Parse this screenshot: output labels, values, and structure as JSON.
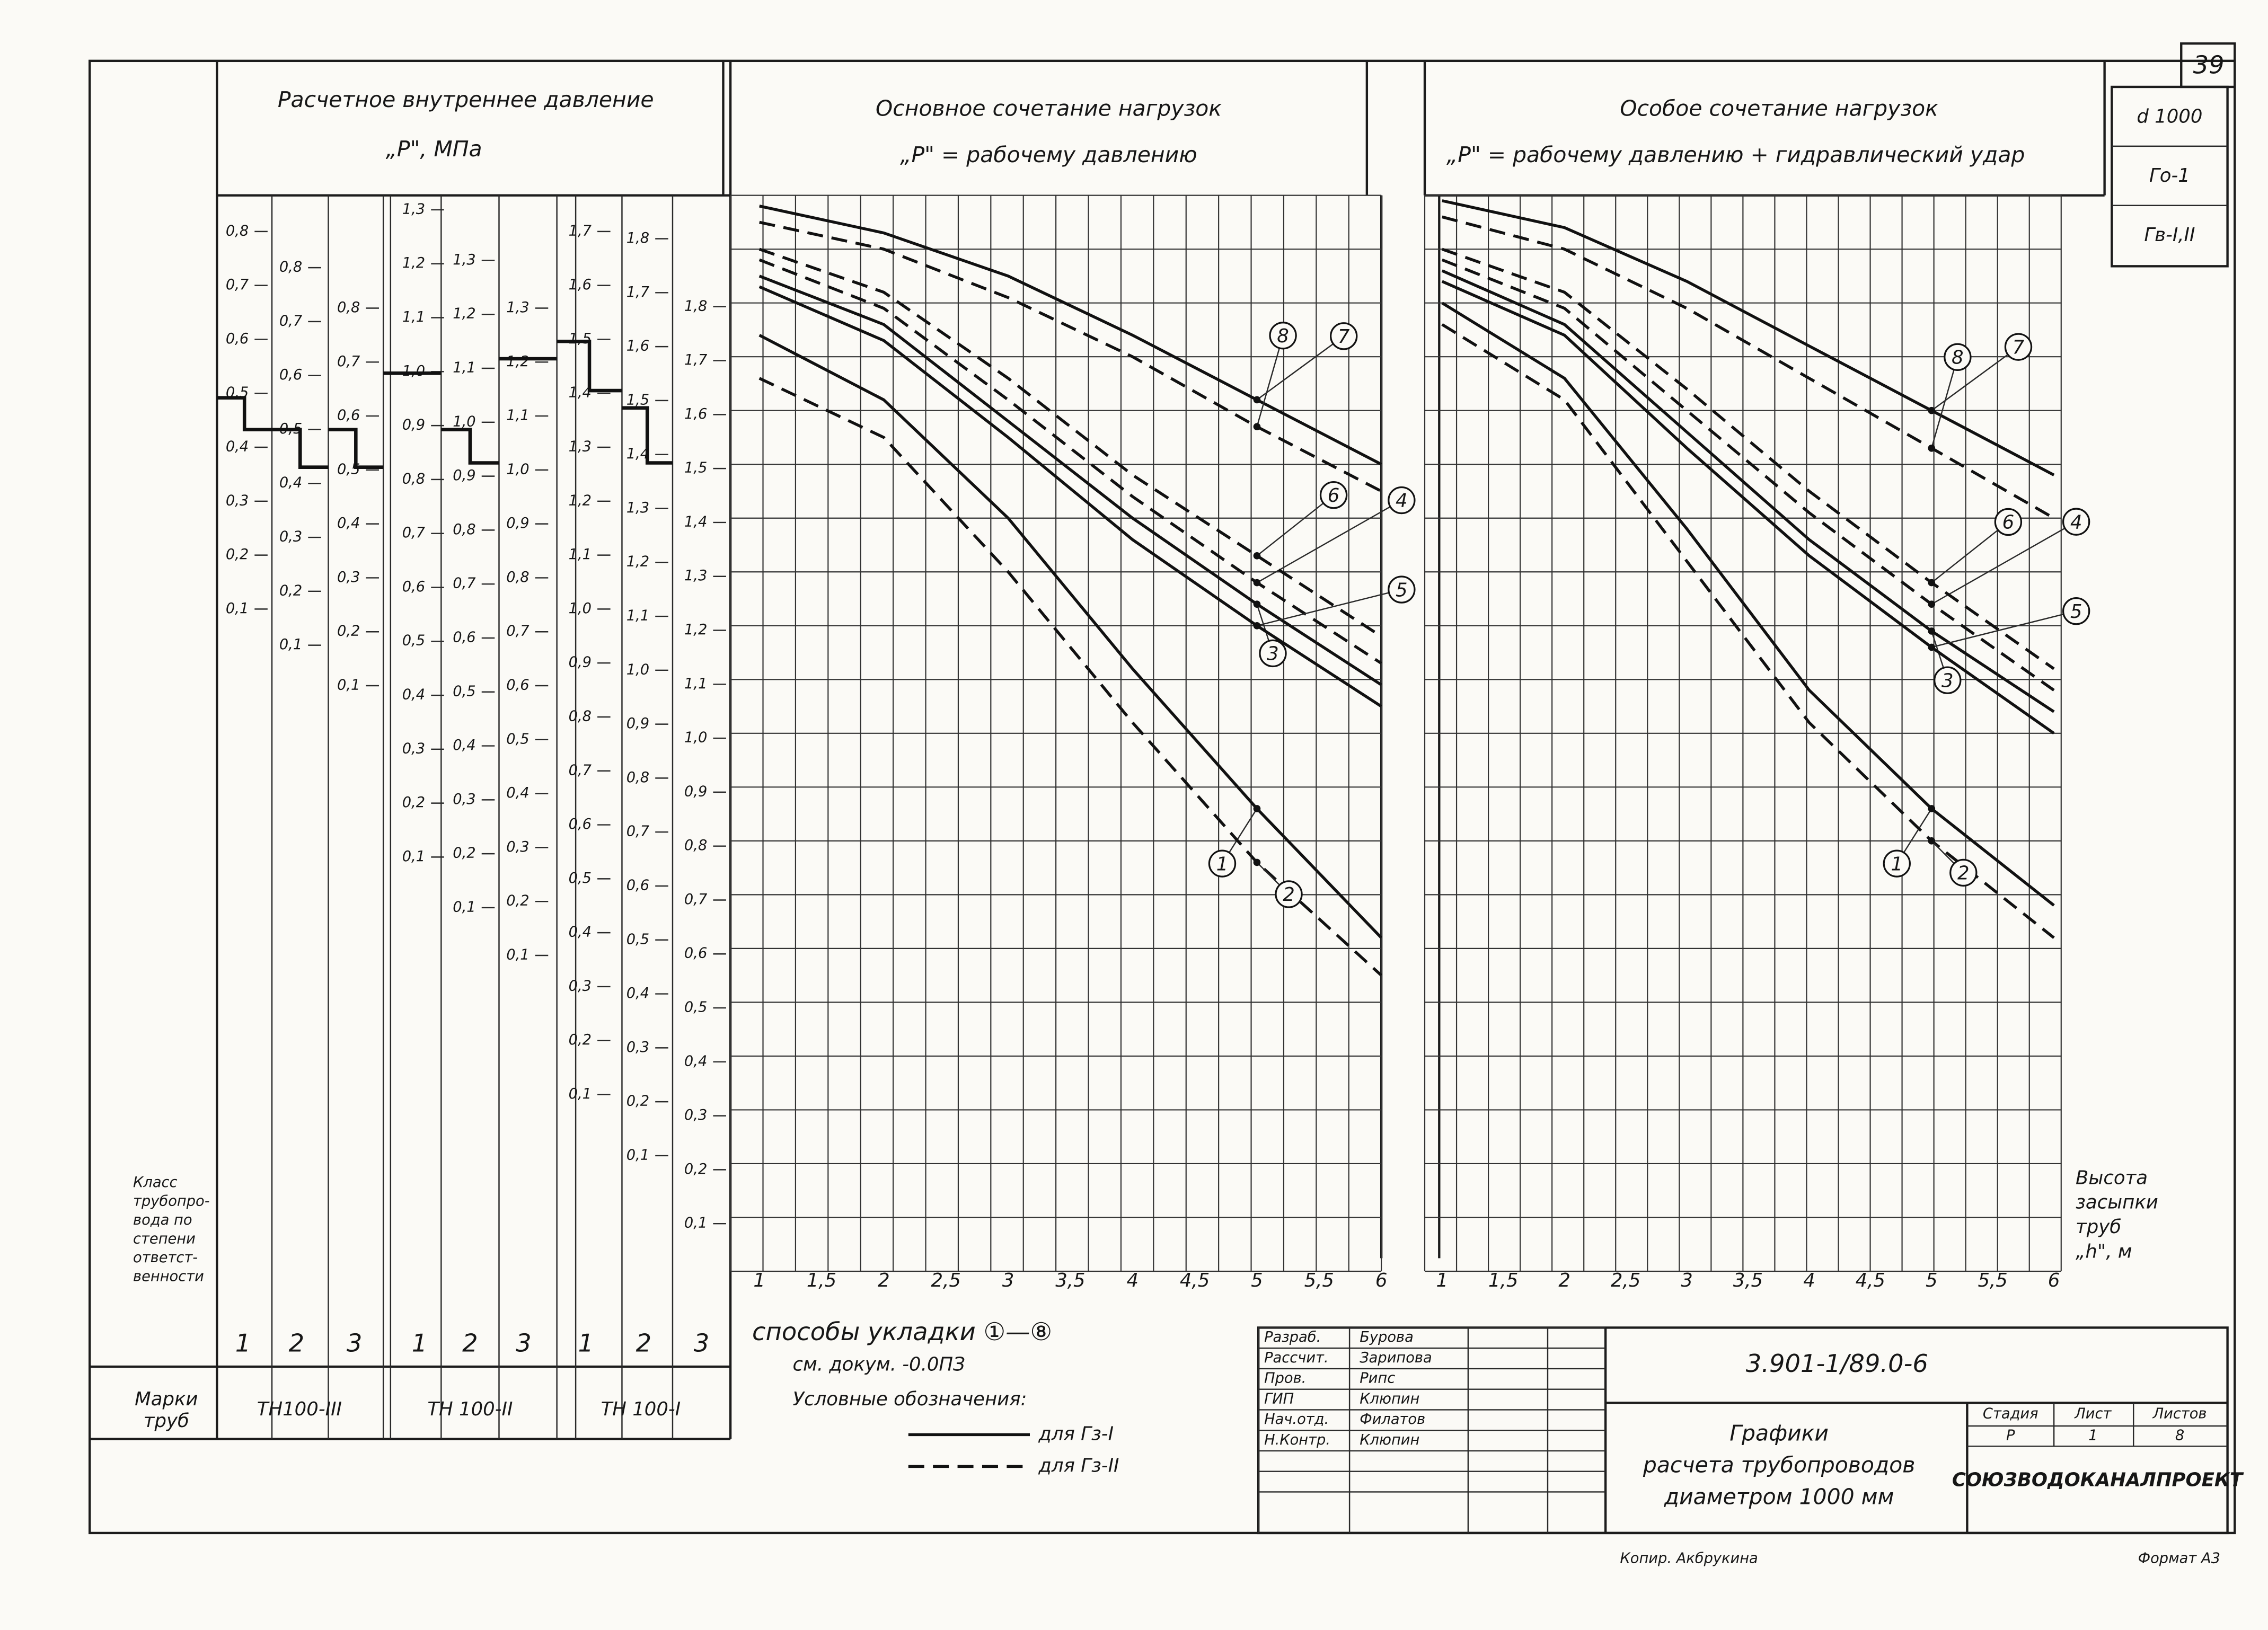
{
  "sheet_number": "39",
  "stamp": [
    "d 1000",
    "Го-1",
    "Гв-I,II"
  ],
  "pressure_scale": {
    "title": "Расчетное внутреннее давление",
    "unit": "„Р\", МПа",
    "columns": [
      [
        "0,8",
        "0,7",
        "0,6",
        "0,5",
        "0,4",
        "0,3",
        "0,2",
        "0,1"
      ],
      [
        "0,8",
        "0,7",
        "0,6",
        "0,5",
        "0,4",
        "0,3",
        "0,2",
        "0,1"
      ],
      [
        "0,8",
        "0,7",
        "0,6",
        "0,5",
        "0,4",
        "0,3",
        "0,2",
        "0,1"
      ],
      [
        "1,3",
        "1,2",
        "1,1",
        "1,0",
        "0,9",
        "0,8",
        "0,7",
        "0,6",
        "0,5",
        "0,4",
        "0,3",
        "0,2",
        "0,1"
      ],
      [
        "1,3",
        "1,2",
        "1,1",
        "1,0",
        "0,9",
        "0,8",
        "0,7",
        "0,6",
        "0,5",
        "0,4",
        "0,3",
        "0,2",
        "0,1"
      ],
      [
        "1,3",
        "1,2",
        "1,1",
        "1,0",
        "0,9",
        "0,8",
        "0,7",
        "0,6",
        "0,5",
        "0,4",
        "0,3",
        "0,2",
        "0,1"
      ],
      [
        "1,7",
        "1,6",
        "1,5",
        "1,4",
        "1,3",
        "1,2",
        "1,1",
        "1,0",
        "0,9",
        "0,8",
        "0,7",
        "0,6",
        "0,5",
        "0,4",
        "0,3",
        "0,2",
        "0,1"
      ],
      [
        "1,8",
        "1,7",
        "1,6",
        "1,5",
        "1,4",
        "1,3",
        "1,2",
        "1,1",
        "1,0",
        "0,9",
        "0,8",
        "0,7",
        "0,6",
        "0,5",
        "0,4",
        "0,3",
        "0,2",
        "0,1"
      ],
      [
        "1,8",
        "1,7",
        "1,6",
        "1,5",
        "1,4",
        "1,3",
        "1,2",
        "1,1",
        "1,0",
        "0,9",
        "0,8",
        "0,7",
        "0,6",
        "0,5",
        "0,4",
        "0,3",
        "0,2",
        "0,1"
      ]
    ]
  },
  "class_label": [
    "Класс",
    "трубопро-",
    "вода по",
    "степени",
    "ответст-",
    "венности"
  ],
  "classes": [
    "1",
    "2",
    "3",
    "1",
    "2",
    "3",
    "1",
    "2",
    "3"
  ],
  "pipe_label": [
    "Марки",
    "труб"
  ],
  "pipe_grades": [
    "ТН100-III",
    "ТН 100-II",
    "ТН 100-I"
  ],
  "plots": [
    {
      "title": "Основное сочетание нагрузок",
      "subtitle": "„Р\" = рабочему давлению",
      "x_labels": [
        "1",
        "1,5",
        "2",
        "2,5",
        "3",
        "3,5",
        "4",
        "4,5",
        "5",
        "5,5",
        "6"
      ],
      "h": [
        1,
        2,
        3,
        4,
        5,
        6
      ],
      "ylim": [
        0,
        2
      ],
      "curves": [
        {
          "label": "1",
          "style": "solid",
          "p": [
            1.74,
            1.62,
            1.4,
            1.12,
            0.86,
            0.62
          ]
        },
        {
          "label": "2",
          "style": "dashed",
          "p": [
            1.66,
            1.55,
            1.3,
            1.02,
            0.76,
            0.55
          ]
        },
        {
          "label": "3",
          "style": "solid",
          "p": [
            1.85,
            1.76,
            1.58,
            1.4,
            1.24,
            1.09
          ]
        },
        {
          "label": "4",
          "style": "dashed",
          "p": [
            1.88,
            1.79,
            1.62,
            1.44,
            1.28,
            1.13
          ]
        },
        {
          "label": "5",
          "style": "solid",
          "p": [
            1.83,
            1.73,
            1.55,
            1.36,
            1.2,
            1.05
          ]
        },
        {
          "label": "6",
          "style": "dashed",
          "p": [
            1.9,
            1.82,
            1.66,
            1.48,
            1.33,
            1.18
          ]
        },
        {
          "label": "7",
          "style": "solid",
          "p": [
            1.98,
            1.93,
            1.85,
            1.74,
            1.62,
            1.5
          ]
        },
        {
          "label": "8",
          "style": "dashed",
          "p": [
            1.95,
            1.9,
            1.81,
            1.7,
            1.57,
            1.45
          ]
        }
      ]
    },
    {
      "title": "Особое сочетание нагрузок",
      "subtitle": "„Р\" = рабочему давлению + гидравлический удар",
      "x_labels": [
        "1",
        "1,5",
        "2",
        "2,5",
        "3",
        "3,5",
        "4",
        "4,5",
        "5",
        "5,5",
        "6"
      ],
      "h": [
        1,
        2,
        3,
        4,
        5,
        6
      ],
      "ylim": [
        0,
        2
      ],
      "curves": [
        {
          "label": "1",
          "style": "solid",
          "p": [
            1.8,
            1.66,
            1.38,
            1.08,
            0.86,
            0.68
          ]
        },
        {
          "label": "2",
          "style": "dashed",
          "p": [
            1.76,
            1.62,
            1.32,
            1.02,
            0.8,
            0.62
          ]
        },
        {
          "label": "3",
          "style": "solid",
          "p": [
            1.86,
            1.76,
            1.56,
            1.36,
            1.19,
            1.04
          ]
        },
        {
          "label": "4",
          "style": "dashed",
          "p": [
            1.88,
            1.79,
            1.6,
            1.41,
            1.24,
            1.08
          ]
        },
        {
          "label": "5",
          "style": "solid",
          "p": [
            1.84,
            1.74,
            1.53,
            1.33,
            1.16,
            1.0
          ]
        },
        {
          "label": "6",
          "style": "dashed",
          "p": [
            1.9,
            1.82,
            1.64,
            1.45,
            1.28,
            1.12
          ]
        },
        {
          "label": "7",
          "style": "solid",
          "p": [
            1.99,
            1.94,
            1.84,
            1.72,
            1.6,
            1.48
          ]
        },
        {
          "label": "8",
          "style": "dashed",
          "p": [
            1.96,
            1.9,
            1.79,
            1.66,
            1.53,
            1.4
          ]
        }
      ]
    }
  ],
  "height_label": [
    "Высота",
    "засыпки",
    "труб",
    "„h\", м"
  ],
  "notes": {
    "laying": "способы укладки ①—⑧",
    "see": "см. докум. -0.0ПЗ",
    "legend_title": "Условные обозначения:",
    "legend": [
      {
        "style": "solid",
        "label": "для Гз-I"
      },
      {
        "style": "dashed",
        "label": "для Гз-II"
      }
    ]
  },
  "title_block": {
    "roles": [
      [
        "Разраб.",
        "Бурова"
      ],
      [
        "Рассчит.",
        "Зарипова"
      ],
      [
        "Пров.",
        "Рипс"
      ],
      [
        "ГИП",
        "Клюпин"
      ],
      [
        "Нач.отд.",
        "Филатов"
      ],
      [
        "Н.Контр.",
        "Клюпин"
      ]
    ],
    "code": "3.901-1/89.0-6",
    "title": [
      "Графики",
      "расчета трубопроводов",
      "диаметром 1000 мм"
    ],
    "stage_headers": [
      "Стадия",
      "Лист",
      "Листов"
    ],
    "stage_values": [
      "Р",
      "1",
      "8"
    ],
    "organization": "СОЮЗВОДОКАНАЛПРОЕКТ"
  },
  "copied_by": "Копир. Акбрукина",
  "format": "Формат А3"
}
